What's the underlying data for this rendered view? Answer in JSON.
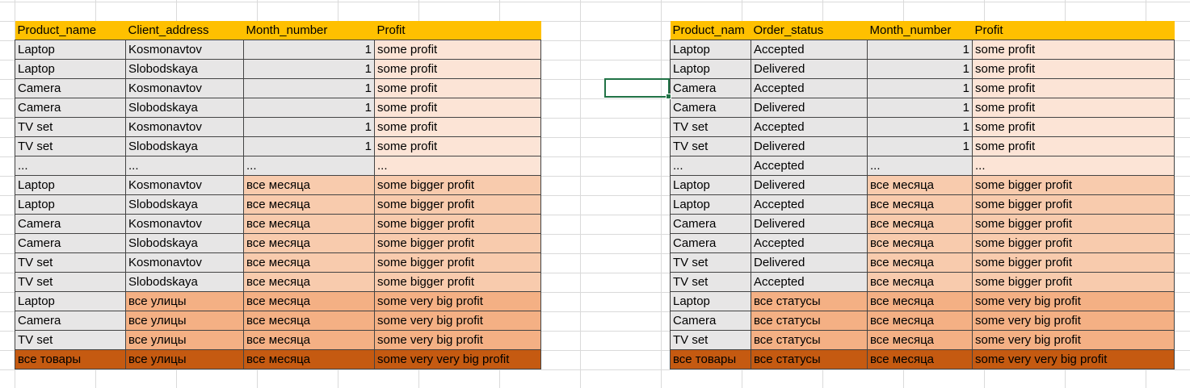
{
  "left_table": {
    "headers": [
      "Product_name",
      "Client_address",
      "Month_number",
      "Profit"
    ],
    "rows": [
      [
        "Laptop",
        "Kosmonavtov",
        "1",
        "some profit"
      ],
      [
        "Laptop",
        "Slobodskaya",
        "1",
        "some profit"
      ],
      [
        "Camera",
        "Kosmonavtov",
        "1",
        "some profit"
      ],
      [
        "Camera",
        "Slobodskaya",
        "1",
        "some profit"
      ],
      [
        "TV set",
        "Kosmonavtov",
        "1",
        "some profit"
      ],
      [
        "TV set",
        "Slobodskaya",
        "1",
        "some profit"
      ],
      [
        "...",
        "...",
        "...",
        "..."
      ],
      [
        "Laptop",
        "Kosmonavtov",
        "все месяца",
        "some bigger profit"
      ],
      [
        "Laptop",
        "Slobodskaya",
        "все месяца",
        "some bigger profit"
      ],
      [
        "Camera",
        "Kosmonavtov",
        "все месяца",
        "some bigger profit"
      ],
      [
        "Camera",
        "Slobodskaya",
        "все месяца",
        "some bigger profit"
      ],
      [
        "TV set",
        "Kosmonavtov",
        "все месяца",
        "some bigger profit"
      ],
      [
        "TV set",
        "Slobodskaya",
        "все месяца",
        "some bigger profit"
      ],
      [
        "Laptop",
        "все улицы",
        "все месяца",
        "some very big profit"
      ],
      [
        "Camera",
        "все улицы",
        "все месяца",
        "some very big profit"
      ],
      [
        "TV set",
        "все улицы",
        "все месяца",
        "some very big profit"
      ],
      [
        "все товары",
        "все улицы",
        "все месяца",
        "some very very big profit"
      ]
    ]
  },
  "right_table": {
    "headers": [
      "Product_nam",
      "Order_status",
      "Month_number",
      "Profit"
    ],
    "rows": [
      [
        "Laptop",
        "Accepted",
        "1",
        "some profit"
      ],
      [
        "Laptop",
        "Delivered",
        "1",
        "some profit"
      ],
      [
        "Camera",
        "Accepted",
        "1",
        "some profit"
      ],
      [
        "Camera",
        "Delivered",
        "1",
        "some profit"
      ],
      [
        "TV set",
        "Accepted",
        "1",
        "some profit"
      ],
      [
        "TV set",
        "Delivered",
        "1",
        "some profit"
      ],
      [
        "...",
        "Accepted",
        "...",
        "..."
      ],
      [
        "Laptop",
        "Delivered",
        "все месяца",
        "some bigger profit"
      ],
      [
        "Laptop",
        "Accepted",
        "все месяца",
        "some bigger profit"
      ],
      [
        "Camera",
        "Delivered",
        "все месяца",
        "some bigger profit"
      ],
      [
        "Camera",
        "Accepted",
        "все месяца",
        "some bigger profit"
      ],
      [
        "TV set",
        "Delivered",
        "все месяца",
        "some bigger profit"
      ],
      [
        "TV set",
        "Accepted",
        "все месяца",
        "some bigger profit"
      ],
      [
        "Laptop",
        "все статусы",
        "все месяца",
        "some very big profit"
      ],
      [
        "Camera",
        "все статусы",
        "все месяца",
        "some very big profit"
      ],
      [
        "TV set",
        "все статусы",
        "все месяца",
        "some very big profit"
      ],
      [
        "все товары",
        "все статусы",
        "все месяца",
        "some very very big profit"
      ]
    ]
  },
  "colors": {
    "header": "#ffc000",
    "gray": "#e7e6e6",
    "level1": "#fce4d6",
    "level2": "#f8cbad",
    "level3": "#f4b084",
    "level4": "#c55a11",
    "selection": "#217346"
  }
}
